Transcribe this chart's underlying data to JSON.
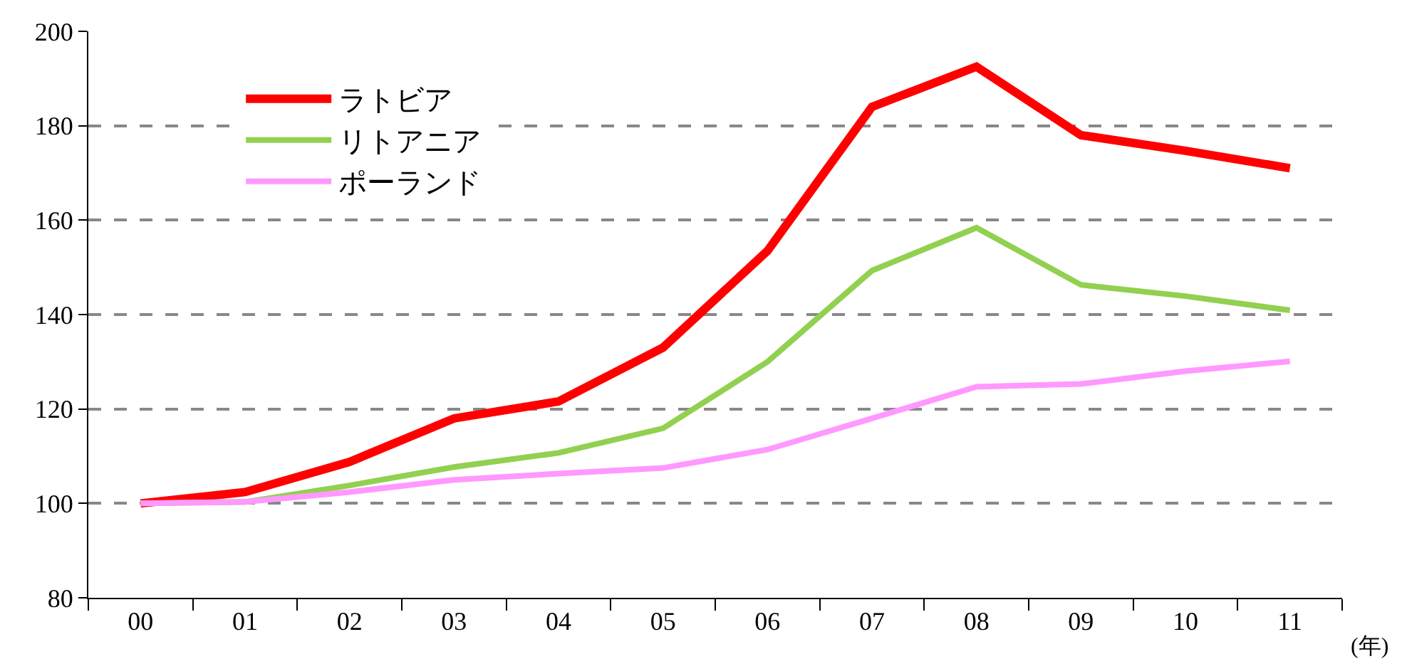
{
  "chart_data": {
    "type": "line",
    "xlabel": "(年)",
    "categories": [
      "00",
      "01",
      "02",
      "03",
      "04",
      "05",
      "06",
      "07",
      "08",
      "09",
      "10",
      "11"
    ],
    "series": [
      {
        "name": "ラトビア",
        "color": "#ff0000",
        "values": [
          100,
          102.4,
          108.8,
          118,
          121.6,
          133,
          153.5,
          184,
          192.5,
          178,
          174.7,
          171
        ]
      },
      {
        "name": "リトアニア",
        "color": "#92d050",
        "values": [
          100,
          100.3,
          103.8,
          107.7,
          110.7,
          115.9,
          130,
          149.3,
          158.4,
          146.3,
          143.9,
          140.9
        ]
      },
      {
        "name": "ポーランド",
        "color": "#ff99ff",
        "values": [
          100,
          100.3,
          102.4,
          105,
          106.3,
          107.5,
          111.4,
          118,
          124.7,
          125.3,
          128,
          130.1
        ]
      }
    ],
    "ylim": [
      80,
      200
    ],
    "yticks": [
      80,
      100,
      120,
      140,
      160,
      180,
      200
    ],
    "grid": "y",
    "legend": "top left",
    "marker": "none",
    "line_style": "solid"
  }
}
